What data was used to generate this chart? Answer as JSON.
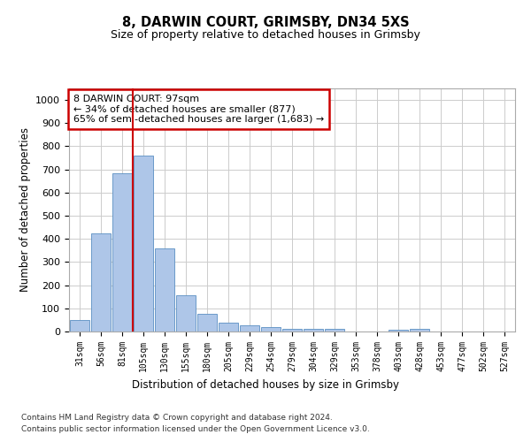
{
  "title1": "8, DARWIN COURT, GRIMSBY, DN34 5XS",
  "title2": "Size of property relative to detached houses in Grimsby",
  "xlabel": "Distribution of detached houses by size in Grimsby",
  "ylabel": "Number of detached properties",
  "categories": [
    "31sqm",
    "56sqm",
    "81sqm",
    "105sqm",
    "130sqm",
    "155sqm",
    "180sqm",
    "205sqm",
    "229sqm",
    "254sqm",
    "279sqm",
    "304sqm",
    "329sqm",
    "353sqm",
    "378sqm",
    "403sqm",
    "428sqm",
    "453sqm",
    "477sqm",
    "502sqm",
    "527sqm"
  ],
  "values": [
    50,
    425,
    685,
    760,
    360,
    155,
    75,
    40,
    28,
    20,
    12,
    10,
    10,
    0,
    0,
    8,
    10,
    0,
    0,
    0,
    0
  ],
  "bar_color": "#aec6e8",
  "bar_edge_color": "#5a8fc2",
  "vline_color": "#cc0000",
  "vline_x_index": 2.5,
  "box_edge_color": "#cc0000",
  "annotation_box_text": "8 DARWIN COURT: 97sqm\n← 34% of detached houses are smaller (877)\n65% of semi-detached houses are larger (1,683) →",
  "ylim": [
    0,
    1050
  ],
  "yticks": [
    0,
    100,
    200,
    300,
    400,
    500,
    600,
    700,
    800,
    900,
    1000
  ],
  "footer_line1": "Contains HM Land Registry data © Crown copyright and database right 2024.",
  "footer_line2": "Contains public sector information licensed under the Open Government Licence v3.0.",
  "background_color": "#ffffff",
  "grid_color": "#cccccc",
  "fig_width": 6.0,
  "fig_height": 5.0
}
